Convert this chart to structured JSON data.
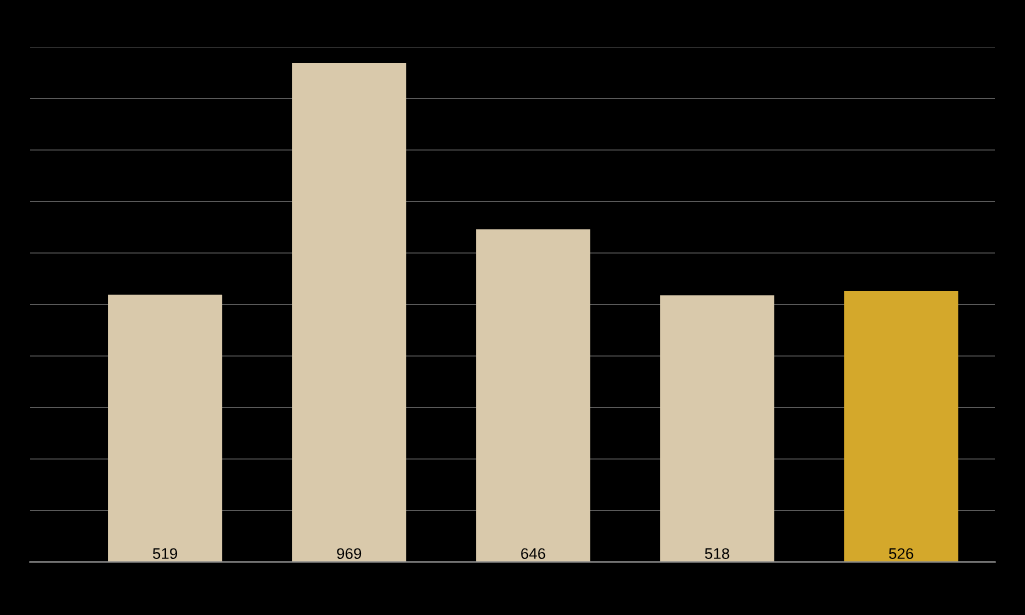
{
  "chart_data": {
    "type": "bar",
    "categories": [
      null,
      null,
      null,
      null,
      null
    ],
    "values": [
      519,
      969,
      646,
      518,
      526
    ],
    "colors": [
      "#d9c9ab",
      "#d9c9ab",
      "#d9c9ab",
      "#d9c9ab",
      "#d4a82b"
    ],
    "ylim": [
      0,
      1000
    ],
    "yticks": [
      {
        "value": 0,
        "label": null
      },
      {
        "value": 100,
        "label": null
      },
      {
        "value": 200,
        "label": null
      },
      {
        "value": 300,
        "label": null
      },
      {
        "value": 400,
        "label": null
      },
      {
        "value": 500,
        "label": null
      },
      {
        "value": 600,
        "label": null
      },
      {
        "value": 700,
        "label": null
      },
      {
        "value": 800,
        "label": null
      },
      {
        "value": 900,
        "label": null
      },
      {
        "value": 1000,
        "label": null
      }
    ],
    "grid": "y",
    "data_labels": true
  }
}
